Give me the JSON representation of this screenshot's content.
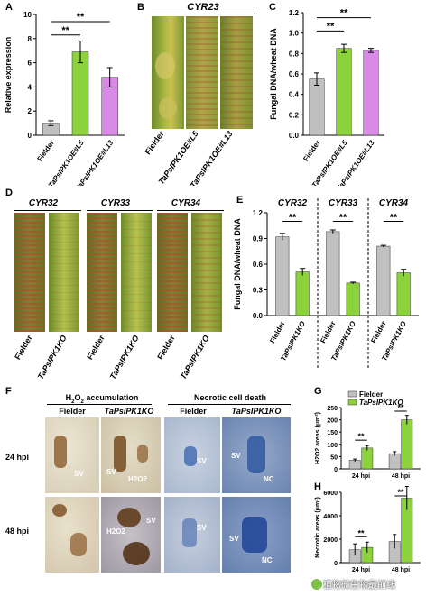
{
  "panels": {
    "A": "A",
    "B": "B",
    "C": "C",
    "D": "D",
    "E": "E",
    "F": "F",
    "G": "G",
    "H": "H"
  },
  "colors": {
    "fielder": "#c0c0c0",
    "oe_l5": "#8cd23a",
    "oe_l13": "#d98ae6",
    "ko": "#8cd23a"
  },
  "sig": "**",
  "panel_b": {
    "title": "CYR23",
    "labels": [
      "Fielder",
      "TaPsIPK1OE#L5",
      "TaPsIPK1OE#L13"
    ]
  },
  "panel_d": {
    "titles": [
      "CYR32",
      "CYR33",
      "CYR34"
    ],
    "labels": [
      "Fielder",
      "TaPsIPK1KO",
      "Fielder",
      "TaPsIPK1KO",
      "Fielder",
      "TaPsIPK1KO"
    ]
  },
  "panel_f": {
    "group_titles": [
      "H2O2 accumulation",
      "Necrotic cell death"
    ],
    "col_labels": [
      "Fielder",
      "TaPsIPK1KO",
      "Fielder",
      "TaPsIPK1KO"
    ],
    "row_labels": [
      "24 hpi",
      "48 hpi"
    ],
    "annotations": {
      "sv": "SV",
      "h2o2": "H2O2",
      "nc": "NC"
    }
  },
  "chart_data": [
    {
      "id": "A",
      "type": "bar",
      "categories": [
        "Fielder",
        "TaPsIPK1OE#L5",
        "TaPsIPK1OE#L13"
      ],
      "values": [
        1.0,
        6.9,
        4.8
      ],
      "errors": [
        0.2,
        0.9,
        0.8
      ],
      "ylabel": "Relative expression",
      "ylim": [
        0,
        10
      ],
      "yticks": [
        0,
        2,
        4,
        6,
        8,
        10
      ],
      "significance": [
        "**",
        "**"
      ]
    },
    {
      "id": "C",
      "type": "bar",
      "categories": [
        "Fielder",
        "TaPsIPK1OE#L5",
        "TaPsIPK1OE#L13"
      ],
      "values": [
        0.55,
        0.85,
        0.83
      ],
      "errors": [
        0.06,
        0.04,
        0.02
      ],
      "ylabel": "Fungal DNA/wheat DNA",
      "ylim": [
        0,
        1.2
      ],
      "yticks": [
        0.0,
        0.2,
        0.4,
        0.6,
        0.8,
        1.0,
        1.2
      ],
      "significance": [
        "**",
        "**"
      ]
    },
    {
      "id": "E",
      "type": "bar",
      "groups": [
        "CYR32",
        "CYR33",
        "CYR34"
      ],
      "categories": [
        "Fielder",
        "TaPsIPK1KO",
        "Fielder",
        "TaPsIPK1KO",
        "Fielder",
        "TaPsIPK1KO"
      ],
      "values": [
        0.92,
        0.51,
        0.98,
        0.38,
        0.81,
        0.5
      ],
      "errors": [
        0.04,
        0.04,
        0.02,
        0.01,
        0.01,
        0.04
      ],
      "ylabel": "Fungal DNA/wheat DNA",
      "ylim": [
        0,
        1.2
      ],
      "yticks": [
        0.0,
        0.3,
        0.6,
        0.9,
        1.2
      ],
      "significance": [
        "**",
        "**",
        "**"
      ]
    },
    {
      "id": "G",
      "type": "bar",
      "categories": [
        "24 hpi",
        "48 hpi"
      ],
      "series": [
        {
          "name": "Fielder",
          "values": [
            35,
            62
          ],
          "errors": [
            5,
            8
          ]
        },
        {
          "name": "TaPsIPK1KO",
          "values": [
            85,
            200
          ],
          "errors": [
            10,
            18
          ]
        }
      ],
      "ylabel": "H2O2 areas (μm²)",
      "ylim": [
        0,
        250
      ],
      "yticks": [
        0,
        50,
        100,
        150,
        200,
        250
      ],
      "significance": [
        "**",
        "**"
      ],
      "legend": "top"
    },
    {
      "id": "H",
      "type": "bar",
      "categories": [
        "24 hpi",
        "48 hpi"
      ],
      "series": [
        {
          "name": "Fielder",
          "values": [
            1100,
            1800
          ],
          "errors": [
            500,
            600
          ]
        },
        {
          "name": "TaPsIPK1KO",
          "values": [
            1300,
            5500
          ],
          "errors": [
            450,
            1000
          ]
        }
      ],
      "ylabel": "Necrotic areas (μm²)",
      "ylim": [
        0,
        6000
      ],
      "yticks": [
        0,
        2000,
        4000,
        6000
      ],
      "significance": [
        "**",
        "**"
      ]
    }
  ],
  "watermark": "植物微生物最前线"
}
